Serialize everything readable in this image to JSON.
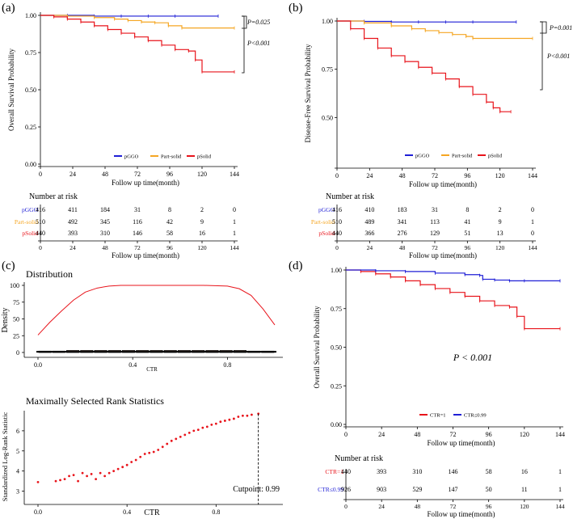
{
  "chart_data": [
    {
      "panel": "(a)",
      "type": "line",
      "ylabel": "Overall Survival Probability",
      "xlabel": "Follow up time(month)",
      "xlim": [
        0,
        144
      ],
      "ylim": [
        0,
        1
      ],
      "xticks": [
        "0",
        "24",
        "48",
        "72",
        "96",
        "120",
        "144"
      ],
      "yticks": [
        "0.00",
        "0.25",
        "0.50",
        "0.75",
        "1.00"
      ],
      "legend": [
        "pGGO",
        "Part-solid",
        "pSolid"
      ],
      "annotations": [
        "P=0.025",
        "P<0.001"
      ],
      "series": [
        {
          "name": "pGGO",
          "color": "#1f1fd6",
          "x": [
            0,
            20,
            40,
            60,
            80,
            100,
            132
          ],
          "y": [
            1.0,
            1.0,
            0.995,
            0.995,
            0.995,
            0.995,
            0.995
          ]
        },
        {
          "name": "Part-solid",
          "color": "#f5a623",
          "x": [
            0,
            20,
            40,
            55,
            65,
            75,
            85,
            95,
            105,
            144
          ],
          "y": [
            1.0,
            0.995,
            0.985,
            0.975,
            0.965,
            0.955,
            0.95,
            0.93,
            0.915,
            0.915
          ]
        },
        {
          "name": "pSolid",
          "color": "#e8141b",
          "x": [
            0,
            10,
            20,
            30,
            40,
            50,
            60,
            70,
            80,
            90,
            100,
            110,
            115,
            120,
            144
          ],
          "y": [
            1.0,
            0.99,
            0.975,
            0.955,
            0.93,
            0.905,
            0.88,
            0.855,
            0.83,
            0.8,
            0.77,
            0.76,
            0.7,
            0.62,
            0.62
          ]
        }
      ],
      "risk_table": {
        "title": "Number at risk",
        "groups": [
          "pGGO",
          "Part-solid",
          "pSolid"
        ],
        "rows": [
          [
            "416",
            "411",
            "184",
            "31",
            "8",
            "2",
            "0"
          ],
          [
            "510",
            "492",
            "345",
            "116",
            "42",
            "9",
            "1"
          ],
          [
            "440",
            "393",
            "310",
            "146",
            "58",
            "16",
            "1"
          ]
        ],
        "xlabel": "Follow up time(month)"
      }
    },
    {
      "panel": "(b)",
      "type": "line",
      "ylabel": "Disease-Free Survival Probability",
      "xlabel": "Follow up time(month)",
      "xlim": [
        0,
        144
      ],
      "ylim": [
        0.25,
        1
      ],
      "xticks": [
        "0",
        "24",
        "48",
        "72",
        "96",
        "120",
        "144"
      ],
      "yticks": [
        "0.50",
        "0.75",
        "1.00"
      ],
      "legend": [
        "pGGO",
        "Part-solid",
        "pSolid"
      ],
      "annotations": [
        "P=0.001",
        "P<0.001"
      ],
      "series": [
        {
          "name": "pGGO",
          "color": "#1f1fd6",
          "x": [
            0,
            20,
            40,
            60,
            80,
            100,
            132
          ],
          "y": [
            1.0,
            0.998,
            0.995,
            0.995,
            0.995,
            0.995,
            0.995
          ]
        },
        {
          "name": "Part-solid",
          "color": "#f5a623",
          "x": [
            0,
            20,
            40,
            55,
            65,
            75,
            85,
            95,
            100,
            144
          ],
          "y": [
            1.0,
            0.99,
            0.975,
            0.96,
            0.95,
            0.94,
            0.93,
            0.92,
            0.91,
            0.91
          ]
        },
        {
          "name": "pSolid",
          "color": "#e8141b",
          "x": [
            0,
            10,
            20,
            30,
            40,
            50,
            60,
            70,
            80,
            90,
            100,
            110,
            115,
            120,
            128
          ],
          "y": [
            1.0,
            0.96,
            0.91,
            0.86,
            0.82,
            0.79,
            0.76,
            0.73,
            0.7,
            0.66,
            0.62,
            0.58,
            0.55,
            0.53,
            0.53
          ]
        }
      ],
      "risk_table": {
        "title": "Number at risk",
        "groups": [
          "pGGO",
          "Part-solid",
          "pSolid"
        ],
        "rows": [
          [
            "416",
            "410",
            "183",
            "31",
            "8",
            "2",
            "0"
          ],
          [
            "510",
            "489",
            "341",
            "113",
            "41",
            "9",
            "1"
          ],
          [
            "440",
            "366",
            "276",
            "129",
            "51",
            "13",
            "0"
          ]
        ],
        "xlabel": "Follow up time(month)"
      }
    },
    {
      "panel": "(c)",
      "type": "area",
      "title": "Distribution",
      "ylabel": "Density",
      "xlabel": "CTR",
      "xlim": [
        0,
        1
      ],
      "ylim": [
        0,
        100
      ],
      "xticks": [
        "0.0",
        "0.4",
        "0.8"
      ],
      "yticks": [
        "0",
        "25",
        "50",
        "75",
        "100"
      ],
      "density_x": [
        0,
        0.05,
        0.1,
        0.15,
        0.2,
        0.25,
        0.3,
        0.35,
        0.4,
        0.5,
        0.6,
        0.7,
        0.8,
        0.85,
        0.9,
        0.95,
        1.0
      ],
      "density_y": [
        26,
        45,
        62,
        78,
        90,
        96,
        99,
        100,
        100,
        100,
        100,
        100,
        99,
        95,
        85,
        65,
        41
      ],
      "histogram": [
        2,
        2,
        3,
        3,
        3,
        3,
        3,
        3,
        3,
        3,
        3,
        3,
        3,
        3,
        3,
        2,
        2
      ]
    },
    {
      "panel": "(c)",
      "type": "scatter",
      "title": "Maximally Selected Rank Statistics",
      "ylabel": "Standardized Log-Rank Statistic",
      "xlabel": "CTR",
      "xlim": [
        0,
        1
      ],
      "ylim": [
        2.5,
        7
      ],
      "xticks": [
        "0.0",
        "0.4",
        "0.8"
      ],
      "yticks": [
        "3",
        "4",
        "5",
        "6"
      ],
      "cutpoint_label": "Cutpoint: 0.99",
      "cutpoint": 0.99,
      "x": [
        0.0,
        0.08,
        0.1,
        0.12,
        0.14,
        0.16,
        0.18,
        0.2,
        0.22,
        0.24,
        0.26,
        0.28,
        0.3,
        0.32,
        0.34,
        0.36,
        0.38,
        0.4,
        0.42,
        0.44,
        0.46,
        0.48,
        0.5,
        0.52,
        0.54,
        0.56,
        0.58,
        0.6,
        0.62,
        0.64,
        0.66,
        0.68,
        0.7,
        0.72,
        0.74,
        0.76,
        0.78,
        0.8,
        0.82,
        0.84,
        0.86,
        0.88,
        0.9,
        0.92,
        0.94,
        0.96,
        0.99
      ],
      "y": [
        3.45,
        3.5,
        3.55,
        3.6,
        3.75,
        3.8,
        3.5,
        3.9,
        3.75,
        3.85,
        3.6,
        3.9,
        3.75,
        3.9,
        4.0,
        4.1,
        4.2,
        4.3,
        4.45,
        4.55,
        4.7,
        4.85,
        4.9,
        4.95,
        5.05,
        5.2,
        5.35,
        5.5,
        5.6,
        5.7,
        5.8,
        5.9,
        6.0,
        6.05,
        6.15,
        6.2,
        6.3,
        6.35,
        6.45,
        6.5,
        6.55,
        6.6,
        6.7,
        6.75,
        6.75,
        6.8,
        6.85
      ]
    },
    {
      "panel": "(d)",
      "type": "line",
      "ylabel": "Overall Survival Probability",
      "xlabel": "Follow up time(month)",
      "xlim": [
        0,
        144
      ],
      "ylim": [
        0,
        1
      ],
      "xticks": [
        "0",
        "24",
        "48",
        "72",
        "96",
        "120",
        "144"
      ],
      "yticks": [
        "0.00",
        "0.25",
        "0.50",
        "0.75",
        "1.00"
      ],
      "legend": [
        "CTR=1",
        "CTR≤0.99"
      ],
      "annotations": [
        "P < 0.001"
      ],
      "series": [
        {
          "name": "CTR=1",
          "color": "#e8141b",
          "x": [
            0,
            10,
            20,
            30,
            40,
            50,
            60,
            70,
            80,
            90,
            100,
            110,
            115,
            120,
            144
          ],
          "y": [
            1.0,
            0.99,
            0.975,
            0.955,
            0.93,
            0.905,
            0.88,
            0.855,
            0.83,
            0.8,
            0.77,
            0.76,
            0.7,
            0.62,
            0.62
          ]
        },
        {
          "name": "CTR≤0.99",
          "color": "#1f1fd6",
          "x": [
            0,
            20,
            40,
            60,
            80,
            90,
            92,
            100,
            110,
            120,
            144
          ],
          "y": [
            1.0,
            0.995,
            0.99,
            0.98,
            0.97,
            0.965,
            0.94,
            0.935,
            0.93,
            0.93,
            0.93
          ]
        }
      ],
      "risk_table": {
        "title": "Number at risk",
        "groups": [
          "CTR=1",
          "CTR≤0.99"
        ],
        "rows": [
          [
            "440",
            "393",
            "310",
            "146",
            "58",
            "16",
            "1"
          ],
          [
            "926",
            "903",
            "529",
            "147",
            "50",
            "11",
            "1"
          ]
        ],
        "xlabel": "Follow up time(month)"
      }
    }
  ],
  "panel_labels": [
    "(a)",
    "(b)",
    "(c)",
    "(d)"
  ],
  "group_colors": {
    "pGGO": "#1f1fd6",
    "Part-solid": "#f5a623",
    "pSolid": "#e8141b",
    "CTR=1": "#e8141b",
    "CTR≤0.99": "#1f1fd6"
  }
}
